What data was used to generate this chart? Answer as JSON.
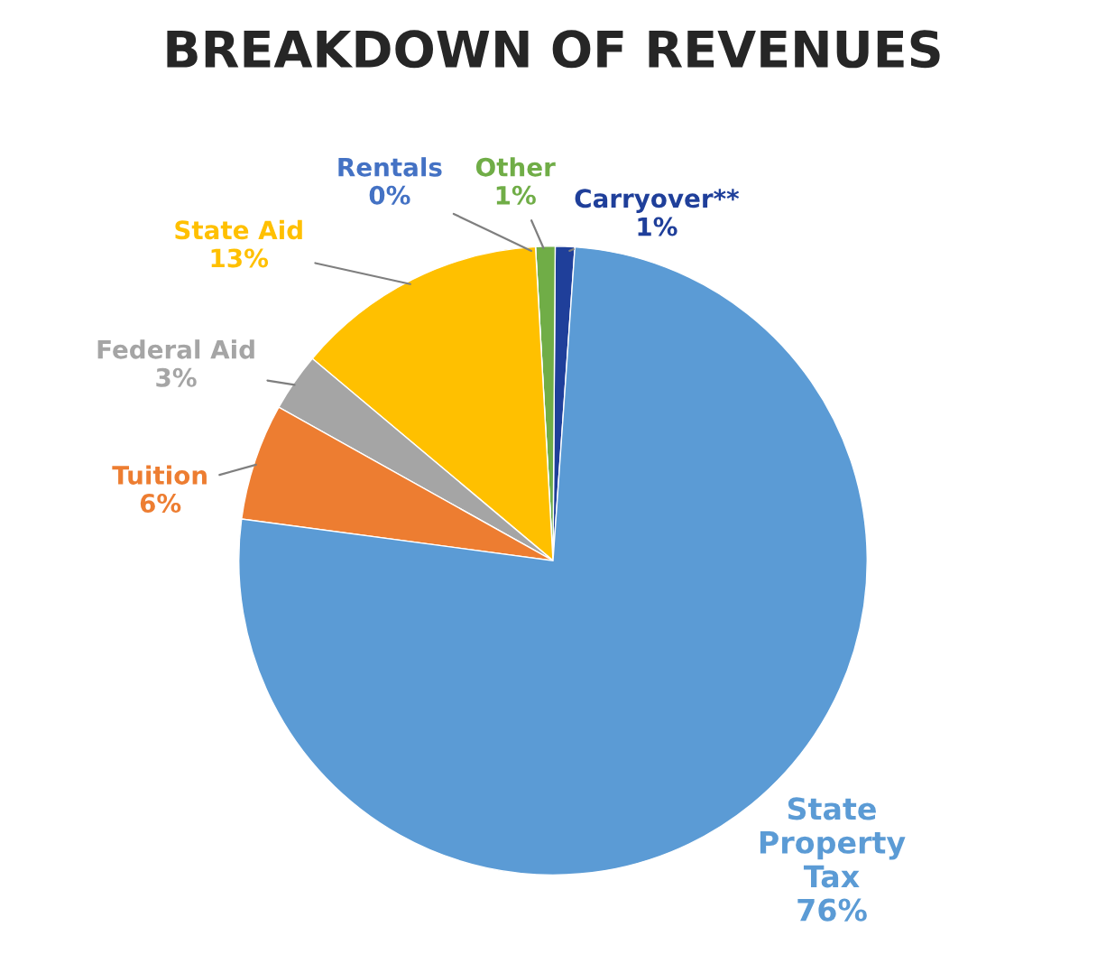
{
  "chart_data": {
    "type": "pie",
    "title": "BREAKDOWN OF REVENUES",
    "categories": [
      "Carryover**",
      "Other",
      "Rentals",
      "State Aid",
      "Federal Aid",
      "Tuition",
      "State Property Tax"
    ],
    "values": [
      1,
      1,
      0,
      13,
      3,
      6,
      76
    ],
    "value_labels": [
      "1%",
      "1%",
      "0%",
      "13%",
      "3%",
      "6%",
      "76%"
    ],
    "colors": [
      "#1f3f9a",
      "#70ad47",
      "#4472c4",
      "#ffc000",
      "#a5a5a5",
      "#ed7d31",
      "#5b9bd5"
    ],
    "legend": false
  }
}
